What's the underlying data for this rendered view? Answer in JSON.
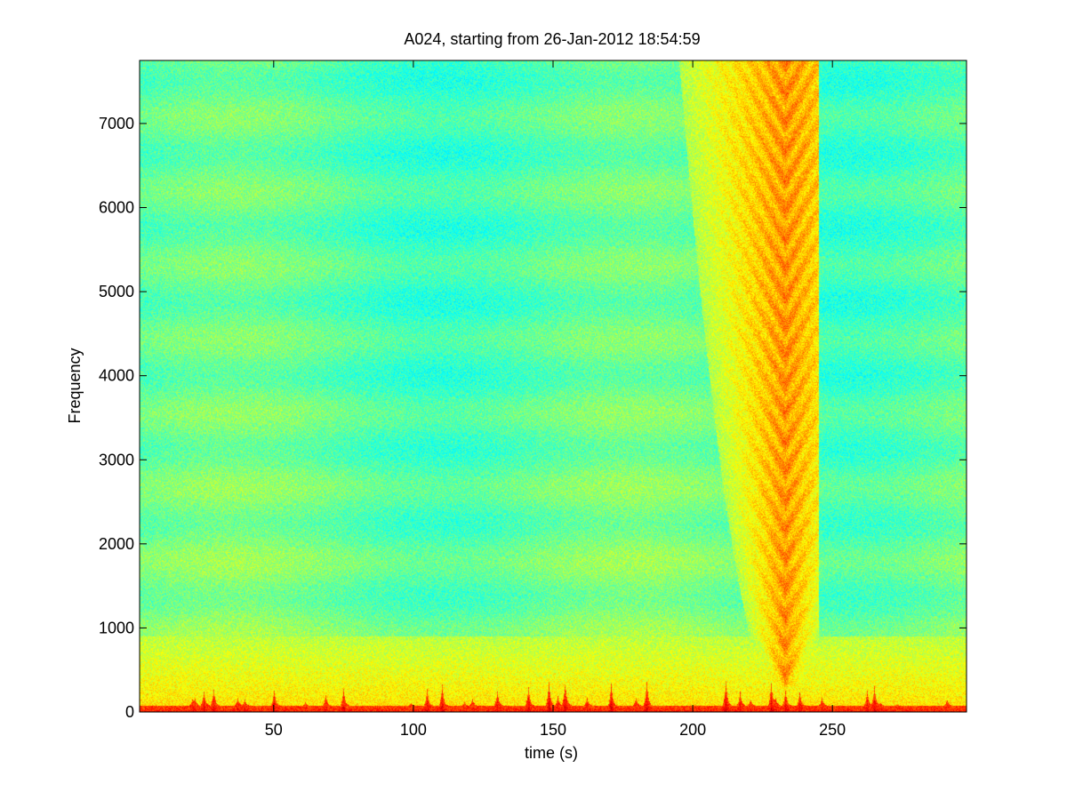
{
  "chart_data": {
    "type": "heatmap",
    "title": "A024, starting from 26-Jan-2012 18:54:59",
    "xlabel": "time (s)",
    "ylabel": "Frequency",
    "xlim": [
      2,
      298
    ],
    "ylim": [
      0,
      7750
    ],
    "x_ticks": [
      50,
      100,
      150,
      200,
      250
    ],
    "y_ticks": [
      0,
      1000,
      2000,
      3000,
      4000,
      5000,
      6000,
      7000
    ],
    "colormap": "jet",
    "colormap_stops": [
      "#00007f",
      "#0000ff",
      "#007fff",
      "#00ffff",
      "#7fff7f",
      "#ffff00",
      "#ff7f00",
      "#ff0000",
      "#7f0000"
    ],
    "background_level": 0.46,
    "features": [
      {
        "kind": "low-frequency energy band",
        "freq_range": [
          0,
          900
        ],
        "time_range": [
          2,
          298
        ],
        "level": 0.66
      },
      {
        "kind": "strong energy at lowest frequencies",
        "freq_range": [
          0,
          80
        ],
        "time_range": [
          2,
          298
        ],
        "level": 0.85
      },
      {
        "kind": "V-shaped broadband event",
        "time_range": [
          190,
          245
        ],
        "apex_time": 233,
        "apex_freq": 300,
        "top_freq": 7750,
        "level": 0.7
      }
    ]
  }
}
